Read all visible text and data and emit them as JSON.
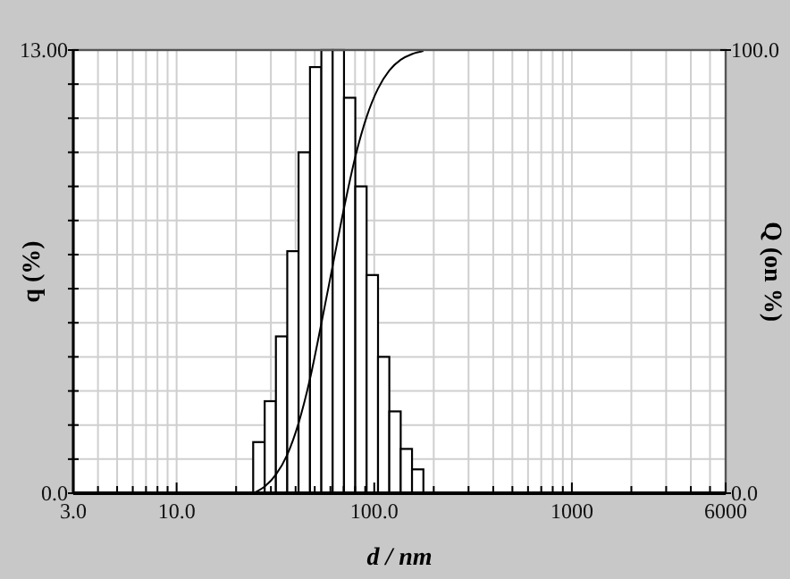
{
  "chart_data": {
    "type": "histogram",
    "xlabel": "d / nm",
    "ylabel": "q (%)",
    "y2label": "Q (on %)",
    "log": "x",
    "grid": true,
    "xlim": [
      3,
      6000
    ],
    "ylim": [
      0,
      13
    ],
    "y2lim": [
      0,
      100
    ],
    "xticks": [
      {
        "value": 3,
        "label": "3.0"
      },
      {
        "value": 4,
        "label": null
      },
      {
        "value": 5,
        "label": null
      },
      {
        "value": 6,
        "label": null
      },
      {
        "value": 7,
        "label": null
      },
      {
        "value": 8,
        "label": null
      },
      {
        "value": 9,
        "label": null
      },
      {
        "value": 10,
        "label": "10.0"
      },
      {
        "value": 20,
        "label": null
      },
      {
        "value": 30,
        "label": null
      },
      {
        "value": 40,
        "label": null
      },
      {
        "value": 50,
        "label": null
      },
      {
        "value": 60,
        "label": null
      },
      {
        "value": 70,
        "label": null
      },
      {
        "value": 80,
        "label": null
      },
      {
        "value": 90,
        "label": null
      },
      {
        "value": 100,
        "label": "100.0"
      },
      {
        "value": 200,
        "label": null
      },
      {
        "value": 300,
        "label": null
      },
      {
        "value": 400,
        "label": null
      },
      {
        "value": 500,
        "label": null
      },
      {
        "value": 600,
        "label": null
      },
      {
        "value": 700,
        "label": null
      },
      {
        "value": 800,
        "label": null
      },
      {
        "value": 900,
        "label": null
      },
      {
        "value": 1000,
        "label": "1000"
      },
      {
        "value": 2000,
        "label": null
      },
      {
        "value": 3000,
        "label": null
      },
      {
        "value": 4000,
        "label": null
      },
      {
        "value": 5000,
        "label": null
      },
      {
        "value": 6000,
        "label": "6000"
      }
    ],
    "yticks": [
      {
        "value": 0,
        "label": "0.0"
      },
      {
        "value": 1,
        "label": null
      },
      {
        "value": 2,
        "label": null
      },
      {
        "value": 3,
        "label": null
      },
      {
        "value": 4,
        "label": null
      },
      {
        "value": 5,
        "label": null
      },
      {
        "value": 6,
        "label": null
      },
      {
        "value": 7,
        "label": null
      },
      {
        "value": 8,
        "label": null
      },
      {
        "value": 9,
        "label": null
      },
      {
        "value": 10,
        "label": null
      },
      {
        "value": 11,
        "label": null
      },
      {
        "value": 12,
        "label": null
      },
      {
        "value": 13,
        "label": "13.00"
      }
    ],
    "y2ticks": [
      {
        "value": 0,
        "label": "0.0"
      },
      {
        "value": 100,
        "label": "100.0"
      }
    ],
    "series": [
      {
        "color": "#ffffff",
        "bins": [
          24.4,
          27.9,
          31.8,
          36.3,
          41.4,
          47.3,
          54.0,
          61.6,
          70.3,
          80.2,
          91.5,
          104.5,
          119.2,
          136.1,
          155.3,
          177.3
        ],
        "values": [
          1.5,
          2.7,
          4.6,
          7.1,
          10.0,
          12.5,
          13.0,
          13.0,
          11.6,
          9.0,
          6.4,
          4.0,
          2.4,
          1.3,
          0.7
        ]
      },
      {
        "type": "line",
        "axis": "y2",
        "color": "#000000",
        "marker": "none",
        "line_style": "solid",
        "x": [
          24.4,
          27.9,
          31.8,
          36.3,
          41.4,
          47.3,
          54.0,
          61.6,
          70.3,
          80.2,
          91.5,
          104.5,
          119.2,
          136.1,
          155.3,
          177.3
        ],
        "values": [
          0,
          1.5,
          4.2,
          8.7,
          15.8,
          25.8,
          38.3,
          51.3,
          64.3,
          75.9,
          84.9,
          91.3,
          95.4,
          97.8,
          99.1,
          99.8
        ]
      }
    ]
  }
}
